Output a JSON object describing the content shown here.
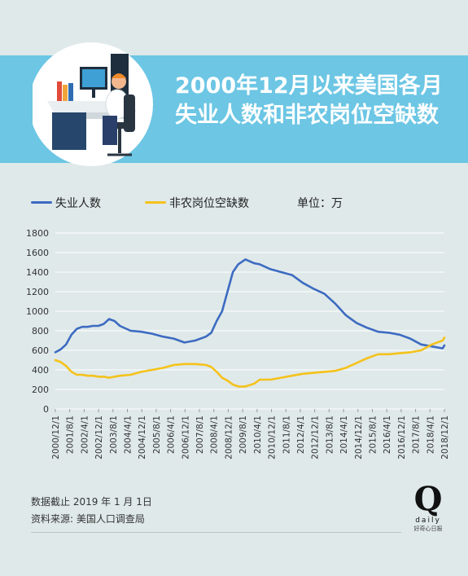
{
  "header": {
    "title_line1": "2000年12月以来美国各月",
    "title_line2": "失业人数和非农岗位空缺数",
    "illustration_icon": "office-worker-at-computer-icon"
  },
  "legend": {
    "unit_label": "单位：万"
  },
  "footer": {
    "note": "数据截止 2019 年 1 月 1日",
    "source": "资料来源: 美国人口调查局",
    "logo_mark": "Q",
    "logo_word": "daily",
    "logo_caption": "好奇心日报"
  },
  "colors": {
    "unemployed": "#3d6bc2",
    "openings": "#f5c21b",
    "banner": "#6cc6e4",
    "background": "#dfe9e9"
  },
  "chart_data": {
    "type": "line",
    "title": "2000年12月以来美国各月失业人数和非农岗位空缺数",
    "ylabel": "单位：万",
    "ylim": [
      0,
      1800
    ],
    "yticks": [
      0,
      200,
      400,
      600,
      800,
      1000,
      1200,
      1400,
      1600,
      1800
    ],
    "grid": true,
    "legend_position": "top-left",
    "xlim": [
      "2000-12",
      "2019-01"
    ],
    "xtick_labels": [
      "2000/12/1",
      "2001/8/1",
      "2002/4/1",
      "2002/12/1",
      "2003/8/1",
      "2004/4/1",
      "2004/12/1",
      "2005/8/1",
      "2006/4/1",
      "2006/12/1",
      "2007/8/1",
      "2008/4/1",
      "2008/12/1",
      "2009/8/1",
      "2010/4/1",
      "2010/12/1",
      "2011/8/1",
      "2012/4/1",
      "2012/12/1",
      "2013/8/1",
      "2014/4/1",
      "2014/12/1",
      "2015/8/1",
      "2016/4/1",
      "2016/12/1",
      "2017/8/1",
      "2018/4/1",
      "2018/12/1"
    ],
    "series": [
      {
        "name": "失业人数",
        "x": [
          "2000-12",
          "2001-03",
          "2001-06",
          "2001-09",
          "2001-12",
          "2002-03",
          "2002-06",
          "2002-09",
          "2002-12",
          "2003-03",
          "2003-06",
          "2003-09",
          "2003-12",
          "2004-06",
          "2004-12",
          "2005-06",
          "2005-12",
          "2006-06",
          "2006-12",
          "2007-06",
          "2007-12",
          "2008-03",
          "2008-06",
          "2008-09",
          "2008-12",
          "2009-03",
          "2009-06",
          "2009-10",
          "2010-03",
          "2010-06",
          "2010-12",
          "2011-06",
          "2011-12",
          "2012-06",
          "2012-12",
          "2013-06",
          "2013-12",
          "2014-06",
          "2014-12",
          "2015-06",
          "2015-12",
          "2016-06",
          "2016-12",
          "2017-06",
          "2017-12",
          "2018-06",
          "2018-12",
          "2019-01"
        ],
        "values": [
          580,
          610,
          660,
          760,
          820,
          840,
          840,
          850,
          850,
          870,
          920,
          900,
          850,
          800,
          790,
          770,
          740,
          720,
          680,
          700,
          740,
          780,
          900,
          1000,
          1200,
          1400,
          1480,
          1530,
          1490,
          1480,
          1430,
          1400,
          1370,
          1290,
          1230,
          1180,
          1080,
          960,
          880,
          830,
          790,
          780,
          760,
          720,
          660,
          640,
          620,
          650
        ]
      },
      {
        "name": "非农岗位空缺数",
        "x": [
          "2000-12",
          "2001-03",
          "2001-06",
          "2001-09",
          "2001-12",
          "2002-03",
          "2002-06",
          "2002-09",
          "2002-12",
          "2003-03",
          "2003-06",
          "2003-09",
          "2003-12",
          "2004-06",
          "2004-12",
          "2005-06",
          "2005-12",
          "2006-06",
          "2006-12",
          "2007-06",
          "2007-12",
          "2008-03",
          "2008-06",
          "2008-09",
          "2008-12",
          "2009-03",
          "2009-06",
          "2009-10",
          "2010-03",
          "2010-06",
          "2010-12",
          "2011-06",
          "2011-12",
          "2012-06",
          "2012-12",
          "2013-06",
          "2013-12",
          "2014-06",
          "2014-12",
          "2015-06",
          "2015-12",
          "2016-06",
          "2016-12",
          "2017-06",
          "2017-12",
          "2018-06",
          "2018-12",
          "2019-01"
        ],
        "values": [
          500,
          480,
          440,
          380,
          350,
          350,
          340,
          340,
          330,
          330,
          320,
          330,
          340,
          350,
          380,
          400,
          420,
          450,
          460,
          460,
          450,
          430,
          380,
          320,
          290,
          250,
          230,
          230,
          260,
          300,
          300,
          320,
          340,
          360,
          370,
          380,
          390,
          420,
          470,
          520,
          560,
          560,
          570,
          580,
          600,
          660,
          700,
          730
        ]
      }
    ]
  }
}
